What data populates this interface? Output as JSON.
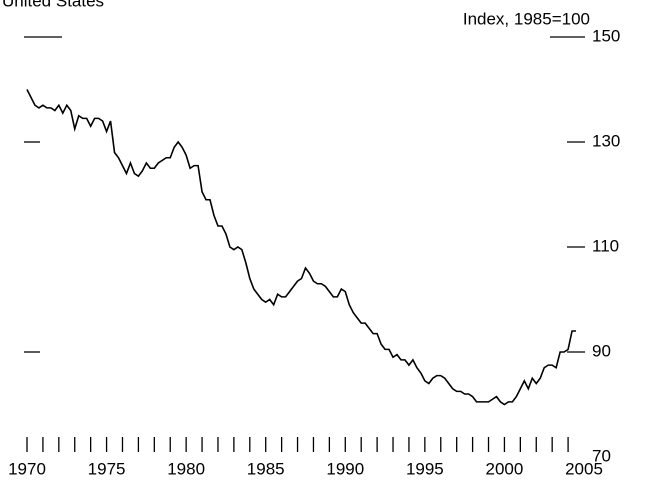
{
  "chart_data": {
    "type": "line",
    "title": "United States",
    "y_label": "Index, 1985=100",
    "x": [
      1970,
      1970.25,
      1970.5,
      1970.75,
      1971,
      1971.25,
      1971.5,
      1971.75,
      1972,
      1972.25,
      1972.5,
      1972.75,
      1973,
      1973.25,
      1973.5,
      1973.75,
      1974,
      1974.25,
      1974.5,
      1974.75,
      1975,
      1975.25,
      1975.5,
      1975.75,
      1976,
      1976.25,
      1976.5,
      1976.75,
      1977,
      1977.25,
      1977.5,
      1977.75,
      1978,
      1978.25,
      1978.5,
      1978.75,
      1979,
      1979.25,
      1979.5,
      1979.75,
      1980,
      1980.25,
      1980.5,
      1980.75,
      1981,
      1981.25,
      1981.5,
      1981.75,
      1982,
      1982.25,
      1982.5,
      1982.75,
      1983,
      1983.25,
      1983.5,
      1983.75,
      1984,
      1984.25,
      1984.5,
      1984.75,
      1985,
      1985.25,
      1985.5,
      1985.75,
      1986,
      1986.25,
      1986.5,
      1986.75,
      1987,
      1987.25,
      1987.5,
      1987.75,
      1988,
      1988.25,
      1988.5,
      1988.75,
      1989,
      1989.25,
      1989.5,
      1989.75,
      1990,
      1990.25,
      1990.5,
      1990.75,
      1991,
      1991.25,
      1991.5,
      1991.75,
      1992,
      1992.25,
      1992.5,
      1992.75,
      1993,
      1993.25,
      1993.5,
      1993.75,
      1994,
      1994.25,
      1994.5,
      1994.75,
      1995,
      1995.25,
      1995.5,
      1995.75,
      1996,
      1996.25,
      1996.5,
      1996.75,
      1997,
      1997.25,
      1997.5,
      1997.75,
      1998,
      1998.25,
      1998.5,
      1998.75,
      1999,
      1999.25,
      1999.5,
      1999.75,
      2000,
      2000.25,
      2000.5,
      2000.75,
      2001,
      2001.25,
      2001.5,
      2001.75,
      2002,
      2002.25,
      2002.5,
      2002.75,
      2003,
      2003.25,
      2003.5,
      2003.75,
      2004,
      2004.25,
      2004.5
    ],
    "values": [
      140,
      138.5,
      137,
      136.5,
      137,
      136.5,
      136.5,
      136,
      137,
      135.5,
      137,
      136,
      132.5,
      135,
      134.5,
      134.5,
      133,
      134.5,
      134.5,
      134,
      132,
      134,
      128,
      127,
      125.5,
      124,
      126,
      124,
      123.5,
      124.5,
      126,
      125,
      125,
      126,
      126.5,
      127,
      127,
      129,
      130,
      129,
      127.5,
      125,
      125.5,
      125.5,
      120.5,
      119,
      119,
      116,
      114,
      114,
      112.5,
      110,
      109.5,
      110,
      109.5,
      107,
      104,
      102,
      101,
      100,
      99.5,
      100,
      99,
      101,
      100.5,
      100.5,
      101.5,
      102.5,
      103.5,
      104,
      106,
      105,
      103.5,
      103,
      103,
      102.5,
      101.5,
      100.5,
      100.5,
      102,
      101.5,
      99,
      97.5,
      96.5,
      95.5,
      95.5,
      94.5,
      93.5,
      93.5,
      91.5,
      90.5,
      90.5,
      89,
      89.5,
      88.5,
      88.5,
      87.5,
      88.5,
      87,
      86,
      84.5,
      84,
      85,
      85.5,
      85.5,
      85,
      84,
      83,
      82.5,
      82.5,
      82,
      82,
      81.5,
      80.5,
      80.5,
      80.5,
      80.5,
      81,
      81.5,
      80.5,
      80,
      80.5,
      80.5,
      81.5,
      83,
      84.5,
      83,
      85,
      84,
      85,
      87,
      87.5,
      87.5,
      87,
      90,
      90,
      90.5,
      94,
      94
    ],
    "color": "#000000",
    "xlim": [
      1970,
      2005
    ],
    "xticks": [
      1970,
      1975,
      1980,
      1985,
      1990,
      1995,
      2000,
      2005
    ],
    "ylim": [
      70,
      150
    ],
    "yticks": [
      70,
      90,
      110,
      130,
      150
    ]
  }
}
